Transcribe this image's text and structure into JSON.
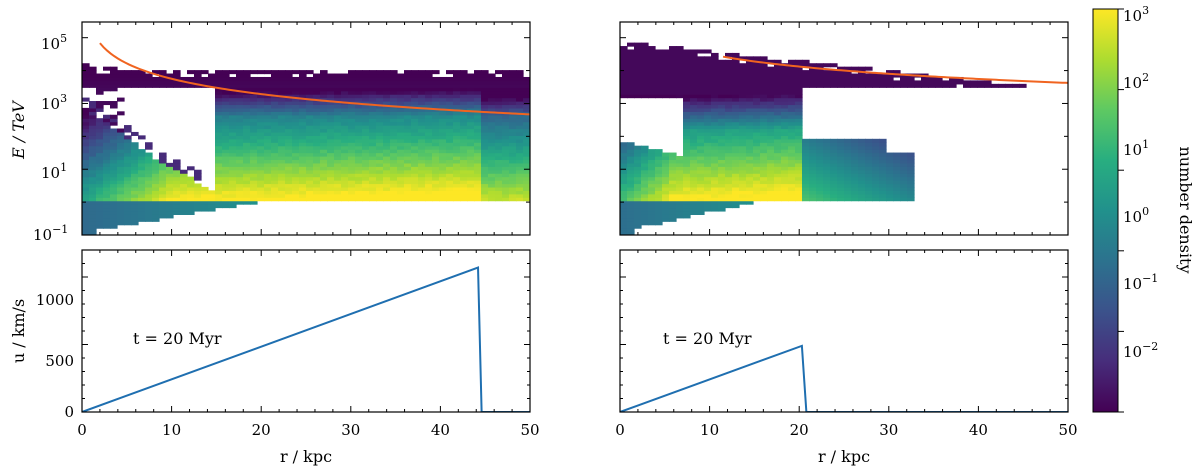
{
  "colors": {
    "energy_curve": "#f06420",
    "velocity_line": "#1f6fb0",
    "colormap": [
      "#440154",
      "#472d7b",
      "#3b528b",
      "#2c728e",
      "#21918c",
      "#28ae80",
      "#5ec962",
      "#addc30",
      "#fde725"
    ]
  },
  "chart_data": [
    {
      "type": "heatmap",
      "panel": "top-left",
      "ylabel": "E / TeV",
      "xlim": [
        0,
        50
      ],
      "ylim": [
        0.1,
        300000
      ],
      "yscale": "log",
      "yticks": [
        {
          "base": "10",
          "exp": "5",
          "value": 100000
        },
        {
          "base": "10",
          "exp": "3",
          "value": 1000
        },
        {
          "base": "10",
          "exp": "1",
          "value": 10
        },
        {
          "base": "10",
          "exp": "−1",
          "value": 0.1
        }
      ],
      "shock_radius": 44.3,
      "orange_curve": {
        "name": "",
        "E_at_r1": 200000,
        "r_start": 2,
        "power": -1.55
      },
      "colorbar_range": [
        0.01,
        1000
      ]
    },
    {
      "type": "heatmap",
      "panel": "top-right",
      "xlim": [
        0,
        50
      ],
      "ylim": [
        0.1,
        300000
      ],
      "yscale": "log",
      "shock_radius": 20.7,
      "orange_curve": {
        "name": "",
        "E_at_r1": 560000,
        "r_start": 11.5,
        "power": -1.25
      },
      "colorbar_range": [
        0.01,
        1000
      ]
    },
    {
      "type": "line",
      "panel": "bottom-left",
      "xlabel": "r / kpc",
      "ylabel": "u / km/s",
      "xlim": [
        0,
        50
      ],
      "ylim": [
        0,
        1200
      ],
      "xticks": [
        "0",
        "10",
        "20",
        "30",
        "40",
        "50"
      ],
      "yticks": [
        "0",
        "500",
        "1000"
      ],
      "annotation": "t = 20 Myr",
      "x": [
        0,
        44.2,
        44.6,
        50
      ],
      "y": [
        0,
        1070,
        0,
        0
      ]
    },
    {
      "type": "line",
      "panel": "bottom-right",
      "xlabel": "r / kpc",
      "xlim": [
        0,
        50
      ],
      "ylim": [
        0,
        1200
      ],
      "xticks": [
        "0",
        "10",
        "20",
        "30",
        "40",
        "50"
      ],
      "annotation": "t = 20 Myr",
      "x": [
        0,
        20.3,
        20.8,
        50
      ],
      "y": [
        0,
        490,
        0,
        0
      ]
    }
  ],
  "colorbar": {
    "label": "number density",
    "scale": "log",
    "range": [
      0.01,
      1000
    ],
    "ticks": [
      {
        "base": "10",
        "exp": "3",
        "value": 1000
      },
      {
        "base": "10",
        "exp": "2",
        "value": 100
      },
      {
        "base": "10",
        "exp": "1",
        "value": 10
      },
      {
        "base": "10",
        "exp": "0",
        "value": 1
      },
      {
        "base": "10",
        "exp": "−1",
        "value": 0.1
      },
      {
        "base": "10",
        "exp": "−2",
        "value": 0.01
      }
    ]
  }
}
